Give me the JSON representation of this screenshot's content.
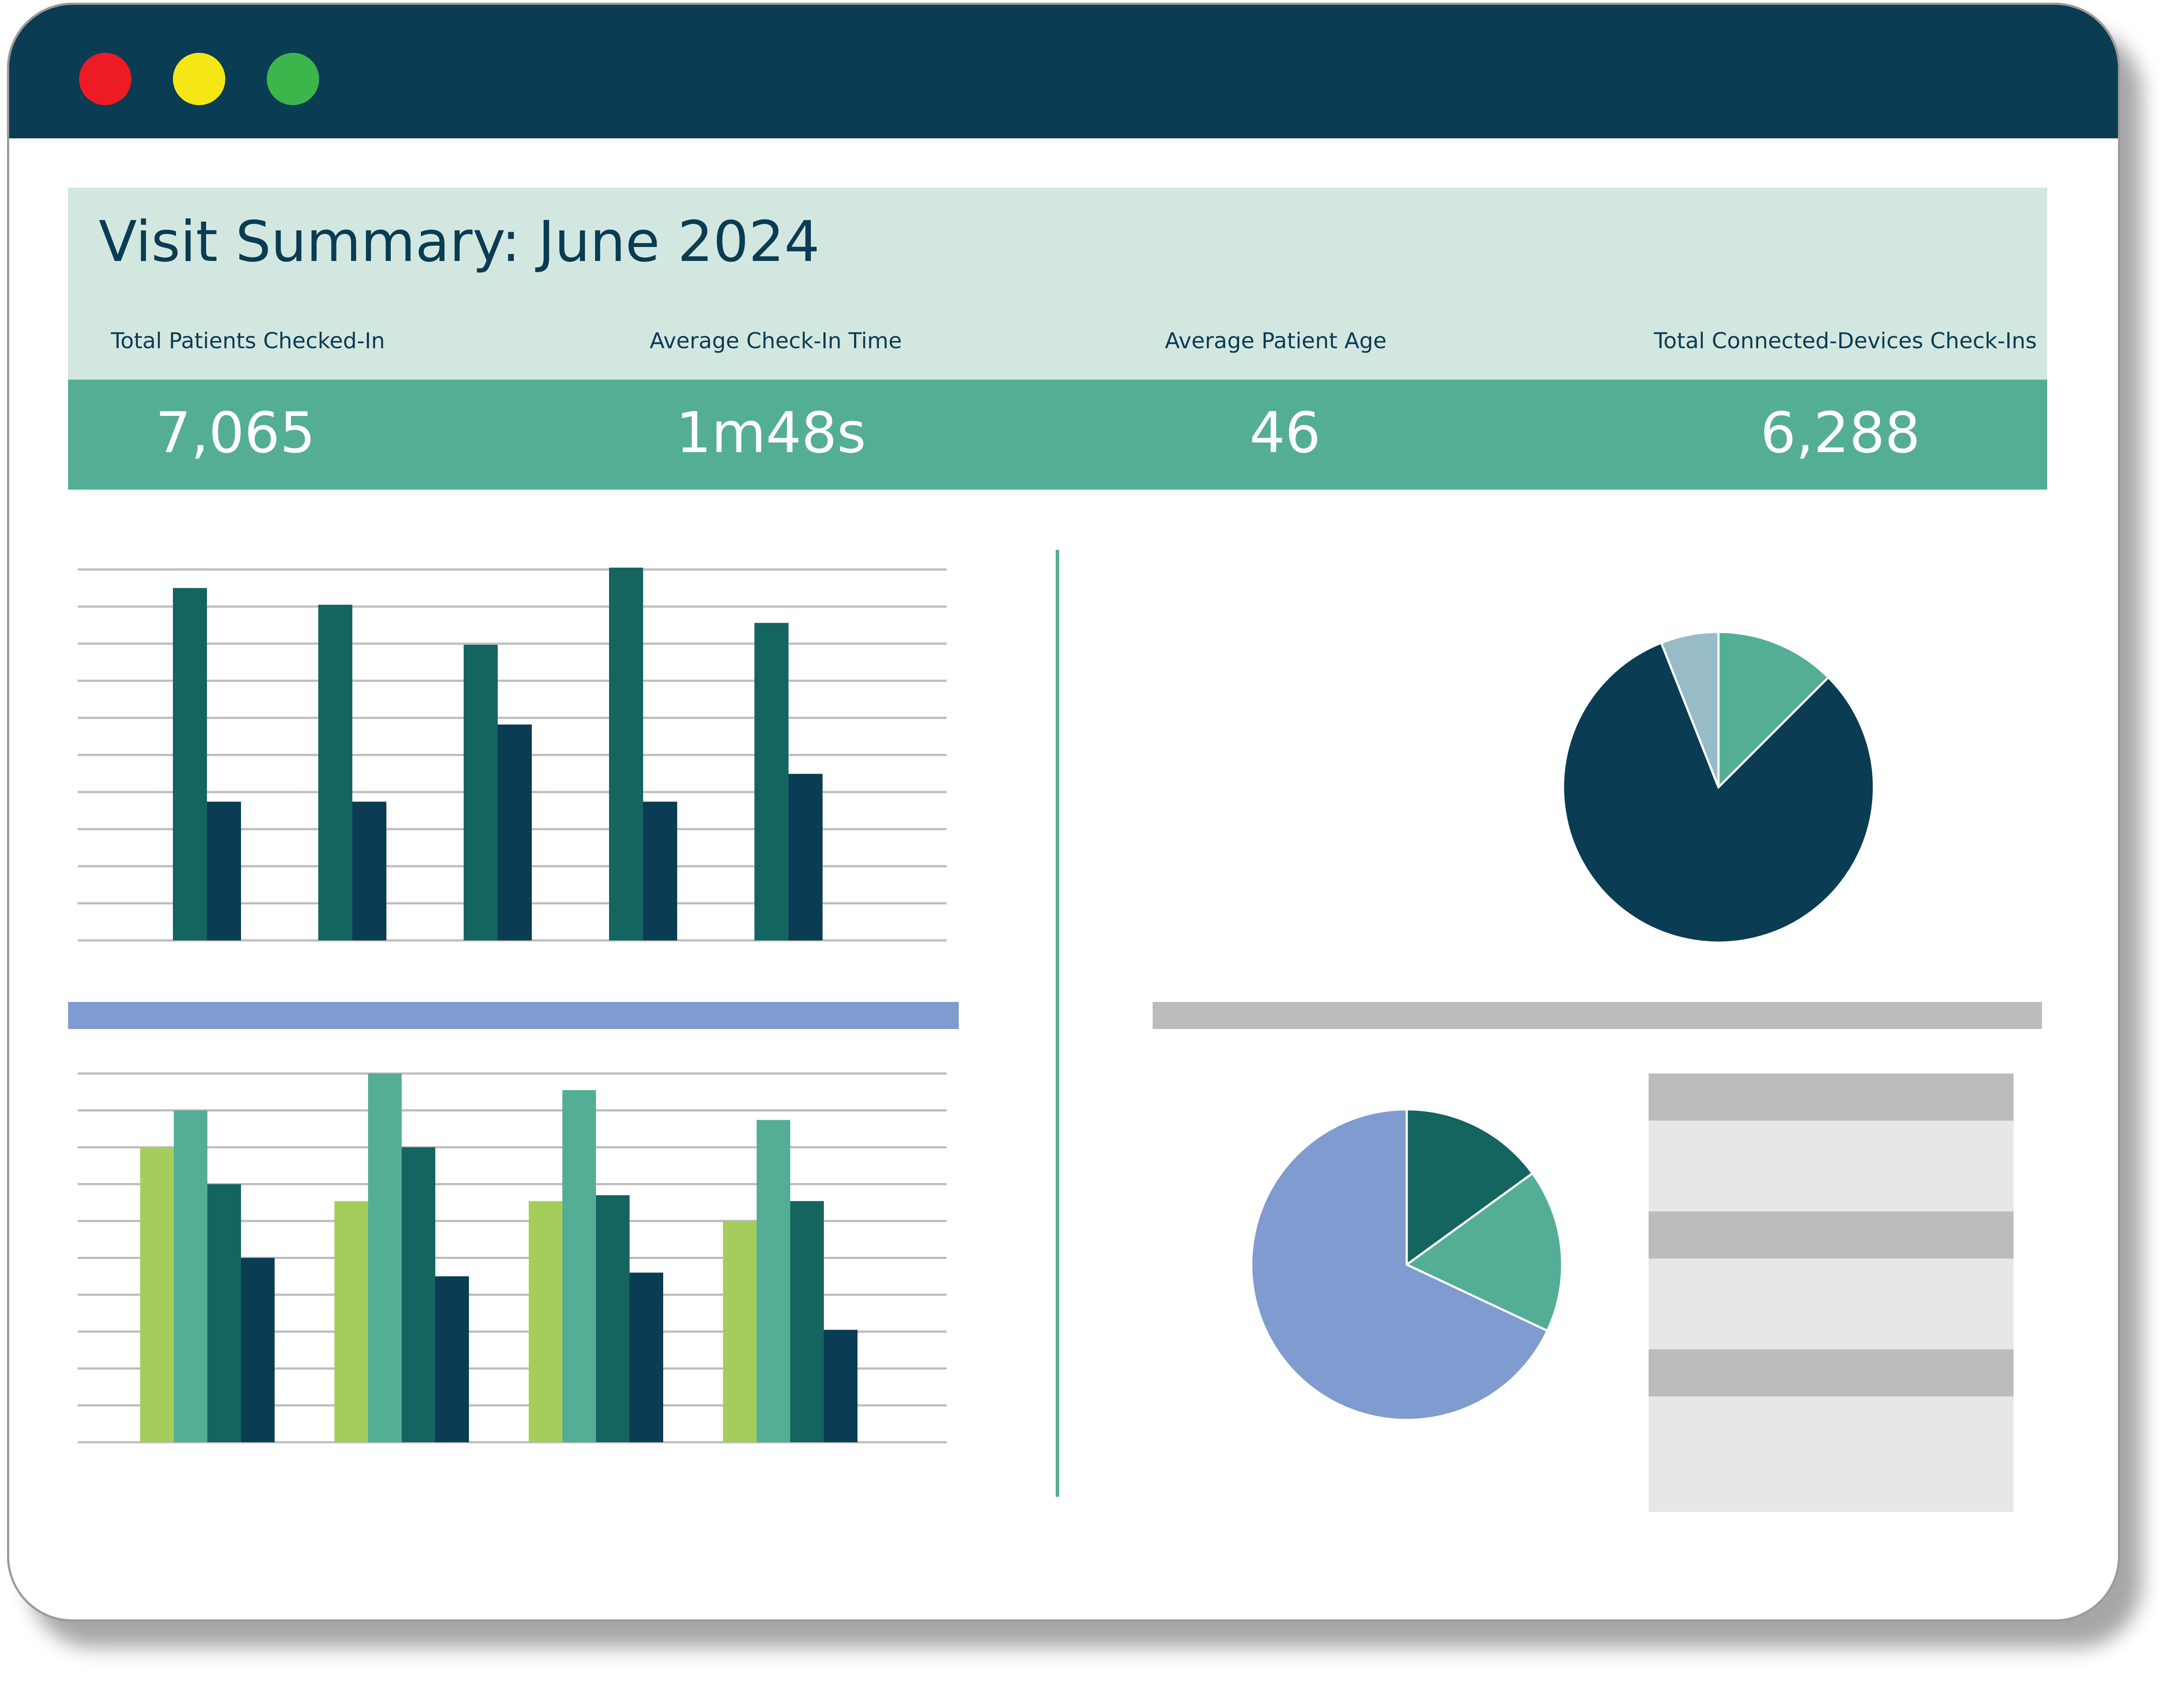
{
  "window": {
    "controls": [
      {
        "name": "close",
        "color": "#ed1c24"
      },
      {
        "name": "minimize",
        "color": "#f5e716"
      },
      {
        "name": "maximize",
        "color": "#3cb54a"
      }
    ]
  },
  "summary": {
    "title": "Visit Summary: June 2024",
    "kpis": [
      {
        "label": "Total Patients Checked-In",
        "value": "7,065"
      },
      {
        "label": "Average Check-In Time",
        "value": "1m48s"
      },
      {
        "label": "Average Patient Age",
        "value": "46"
      },
      {
        "label": "Total Connected-Devices Check-Ins",
        "value": "6,288"
      }
    ]
  },
  "colors": {
    "navy": "#0a3c53",
    "teal_dark": "#146460",
    "teal": "#54ae96",
    "lime": "#a5cd5c",
    "periwinkle": "#7f9bd0",
    "slate_blue": "#97bcc8",
    "gray": "#bbbcbe",
    "gray_light": "#e6e7e8"
  },
  "chart_data": [
    {
      "type": "bar",
      "categories": [
        "",
        "",
        "",
        "",
        ""
      ],
      "ylim": [
        0,
        10
      ],
      "grid": true,
      "series": [
        {
          "color": "#146460",
          "values": [
            9.5,
            9.05,
            7.97,
            10.05,
            8.56
          ]
        },
        {
          "color": "#0a3c53",
          "values": [
            3.74,
            3.74,
            5.82,
            3.74,
            4.49
          ]
        }
      ]
    },
    {
      "type": "bar",
      "categories": [
        "",
        "",
        "",
        ""
      ],
      "ylim": [
        0,
        10
      ],
      "grid": true,
      "series": [
        {
          "color": "#a5cd5c",
          "values": [
            8.0,
            6.54,
            6.54,
            6.0
          ]
        },
        {
          "color": "#54ae96",
          "values": [
            9.0,
            10.0,
            9.55,
            8.74
          ]
        },
        {
          "color": "#146460",
          "values": [
            7.0,
            8.0,
            6.7,
            6.54
          ]
        },
        {
          "color": "#0a3c53",
          "values": [
            5.0,
            4.5,
            4.6,
            3.05
          ]
        }
      ]
    },
    {
      "type": "pie",
      "slices": [
        {
          "value": 12.5,
          "color": "#54ae96"
        },
        {
          "value": 81.5,
          "color": "#0a3c53"
        },
        {
          "value": 6.0,
          "color": "#97bcc8"
        }
      ]
    },
    {
      "type": "pie",
      "slices": [
        {
          "value": 15.0,
          "color": "#146460"
        },
        {
          "value": 17.0,
          "color": "#54ae96"
        },
        {
          "value": 68.0,
          "color": "#7f9bd0"
        }
      ]
    }
  ]
}
